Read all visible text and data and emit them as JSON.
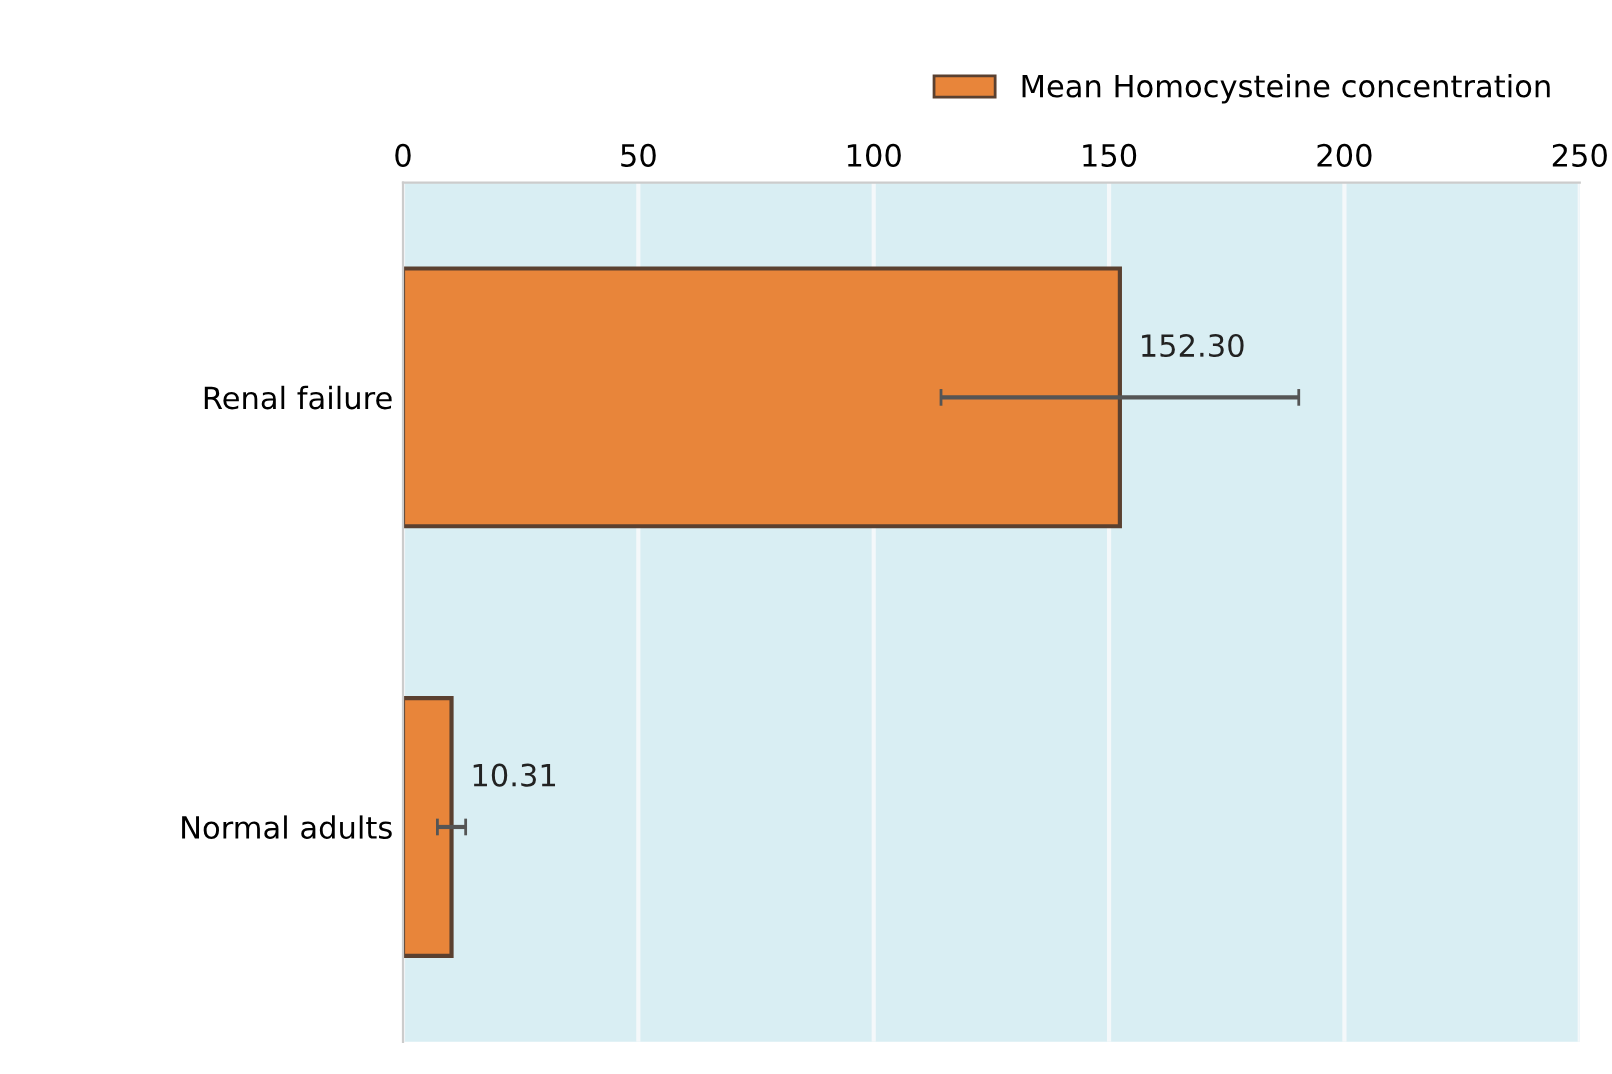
{
  "chart_data": {
    "type": "bar",
    "orientation": "horizontal",
    "categories": [
      "Renal failure",
      "Normal adults"
    ],
    "series": [
      {
        "name": "Mean Homocysteine concentration",
        "color": "#e8853a",
        "values": [
          152.3,
          10.31
        ],
        "errors": [
          38,
          3
        ],
        "value_labels": [
          "152.30",
          "10.31"
        ]
      }
    ],
    "xlim": [
      0,
      250
    ],
    "xticks": [
      0,
      50,
      100,
      150,
      200,
      250
    ],
    "grid": "x",
    "legend": "top right"
  }
}
